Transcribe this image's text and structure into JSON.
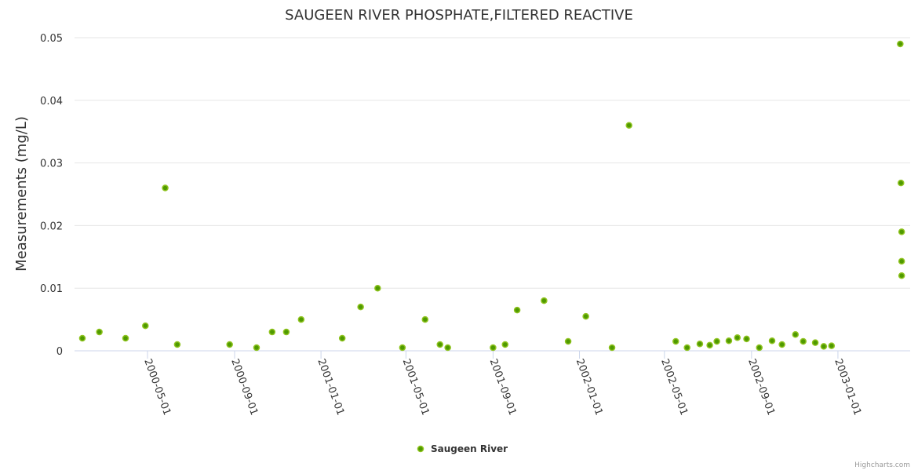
{
  "chart_data": {
    "type": "scatter",
    "title": "SAUGEEN RIVER PHOSPHATE,FILTERED REACTIVE",
    "xlabel": "",
    "ylabel": "Measurements (mg/L)",
    "ylim": [
      0,
      0.05
    ],
    "xlim": [
      "2000-01-10",
      "2003-04-10"
    ],
    "yticks": [
      0,
      0.01,
      0.02,
      0.03,
      0.04,
      0.05
    ],
    "ytick_labels": [
      "0",
      "0.01",
      "0.02",
      "0.03",
      "0.04",
      "0.05"
    ],
    "xticks": [
      "2000-05-01",
      "2000-09-01",
      "2001-01-01",
      "2001-05-01",
      "2001-09-01",
      "2002-01-01",
      "2002-05-01",
      "2002-09-01",
      "2003-01-01"
    ],
    "grid": "horizontal",
    "legend_position": "bottom-center",
    "credits": "Highcharts.com",
    "colors": {
      "marker_fill": "#4f9a00",
      "marker_stroke": "#8fc31f",
      "grid": "#e6e6e6",
      "axis": "#ccd6eb"
    },
    "series": [
      {
        "name": "Saugeen River",
        "points": [
          [
            "2000-01-30",
            0.002
          ],
          [
            "2000-02-23",
            0.003
          ],
          [
            "2000-03-31",
            0.002
          ],
          [
            "2000-04-28",
            0.004
          ],
          [
            "2000-05-26",
            0.026
          ],
          [
            "2000-06-12",
            0.001
          ],
          [
            "2000-08-25",
            0.001
          ],
          [
            "2000-10-02",
            0.0005
          ],
          [
            "2000-10-24",
            0.003
          ],
          [
            "2000-11-13",
            0.003
          ],
          [
            "2000-12-04",
            0.005
          ],
          [
            "2001-01-31",
            0.002
          ],
          [
            "2001-02-26",
            0.007
          ],
          [
            "2001-03-22",
            0.01
          ],
          [
            "2001-04-26",
            0.0005
          ],
          [
            "2001-05-28",
            0.005
          ],
          [
            "2001-06-18",
            0.001
          ],
          [
            "2001-06-29",
            0.0005
          ],
          [
            "2001-09-01",
            0.0005
          ],
          [
            "2001-09-18",
            0.001
          ],
          [
            "2001-10-05",
            0.0065
          ],
          [
            "2001-11-12",
            0.008
          ],
          [
            "2001-12-16",
            0.0015
          ],
          [
            "2002-01-10",
            0.0055
          ],
          [
            "2002-02-16",
            0.0005
          ],
          [
            "2002-03-12",
            0.036
          ],
          [
            "2002-05-17",
            0.0015
          ],
          [
            "2002-06-02",
            0.0005
          ],
          [
            "2002-06-20",
            0.0011
          ],
          [
            "2002-07-04",
            0.0009
          ],
          [
            "2002-07-14",
            0.0015
          ],
          [
            "2002-07-31",
            0.0016
          ],
          [
            "2002-08-12",
            0.0021
          ],
          [
            "2002-08-25",
            0.0019
          ],
          [
            "2002-09-12",
            0.0005
          ],
          [
            "2002-09-30",
            0.0016
          ],
          [
            "2002-10-14",
            0.001
          ],
          [
            "2002-11-02",
            0.0026
          ],
          [
            "2002-11-13",
            0.0015
          ],
          [
            "2002-11-30",
            0.0013
          ],
          [
            "2002-12-12",
            0.0007
          ],
          [
            "2002-12-23",
            0.0008
          ],
          [
            "2003-03-30",
            0.049
          ],
          [
            "2003-03-31",
            0.0268
          ],
          [
            "2003-04-01",
            0.019
          ],
          [
            "2003-04-01",
            0.0143
          ],
          [
            "2003-04-01",
            0.012
          ]
        ]
      }
    ]
  }
}
